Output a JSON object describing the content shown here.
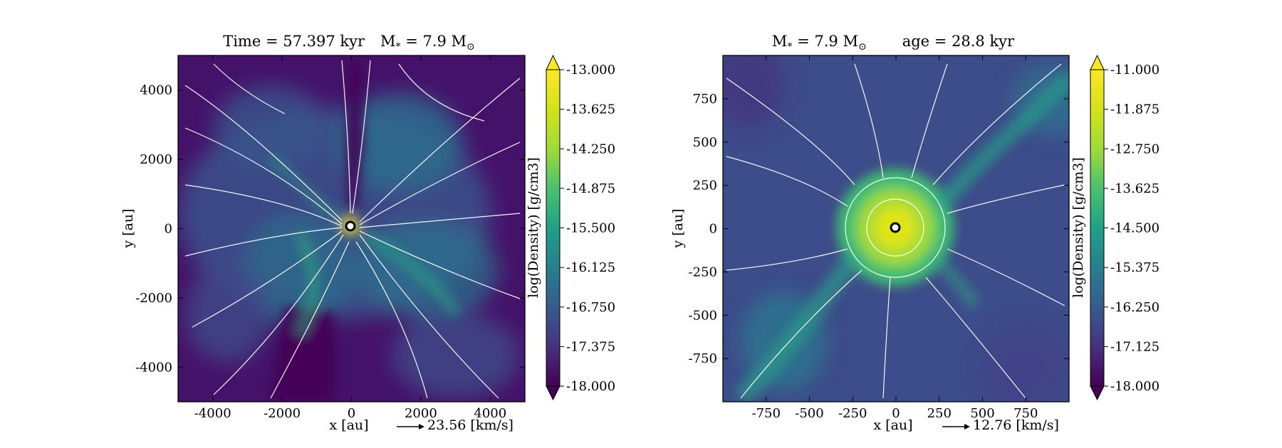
{
  "chart_data": [
    {
      "type": "heatmap",
      "title": "Time = 57.397 kyr    M$_*$ = 7.9 M$_\\odot$",
      "title_parts": {
        "time": "Time = 57.397 kyr",
        "mass_lhs": "M",
        "mass_sub": "*",
        "mass_mid": " = 7.9 M",
        "mass_unit_sub": "⊙"
      },
      "xlabel": "x [au]",
      "ylabel": "y [au]",
      "xlim": [
        -5000,
        5000
      ],
      "ylim": [
        -5000,
        5000
      ],
      "xticks": [
        -4000,
        -2000,
        0,
        2000,
        4000
      ],
      "xtick_labels": [
        "-4000",
        "-2000",
        "0",
        "2000",
        "4000"
      ],
      "yticks": [
        -4000,
        -2000,
        0,
        2000,
        4000
      ],
      "ytick_labels": [
        "-4000",
        "-2000",
        "0",
        "2000",
        "4000"
      ],
      "velocity_key": "23.56 [km/s]",
      "colorbar": {
        "label": "log(Density) [g/cm3]",
        "range": [
          -18.0,
          -13.0
        ],
        "ticks": [
          -13.0,
          -13.625,
          -14.25,
          -14.875,
          -15.5,
          -16.125,
          -16.75,
          -17.375,
          -18.0
        ],
        "tick_labels": [
          "-13.000",
          "-13.625",
          "-14.250",
          "-14.875",
          "-15.500",
          "-16.125",
          "-16.750",
          "-17.375",
          "-18.000"
        ],
        "colormap": "viridis",
        "extend": "both"
      },
      "star_position": [
        0,
        0
      ],
      "grid": false
    },
    {
      "type": "heatmap",
      "title_parts": {
        "mass_lhs": "M",
        "mass_sub": "*",
        "mass_mid": " = 7.9 M",
        "mass_unit_sub": "⊙",
        "age": "age = 28.8 kyr"
      },
      "xlabel": "x [au]",
      "ylabel": "y [au]",
      "xlim": [
        -1000,
        1000
      ],
      "ylim": [
        -1000,
        1000
      ],
      "xticks": [
        -750,
        -500,
        -250,
        0,
        250,
        500,
        750
      ],
      "xtick_labels": [
        "-750",
        "-500",
        "-250",
        "0",
        "250",
        "500",
        "750"
      ],
      "yticks": [
        -750,
        -500,
        -250,
        0,
        250,
        500,
        750
      ],
      "ytick_labels": [
        "-750",
        "-500",
        "-250",
        "0",
        "250",
        "500",
        "750"
      ],
      "velocity_key": "12.76 [km/s]",
      "colorbar": {
        "label": "log(Density) [g/cm3]",
        "range": [
          -18.0,
          -11.0
        ],
        "ticks": [
          -11.0,
          -11.875,
          -12.75,
          -13.625,
          -14.5,
          -15.375,
          -16.25,
          -17.125,
          -18.0
        ],
        "tick_labels": [
          "-11.000",
          "-11.875",
          "-12.750",
          "-13.625",
          "-14.500",
          "-15.375",
          "-16.250",
          "-17.125",
          "-18.000"
        ],
        "colormap": "viridis",
        "extend": "both"
      },
      "star_position": [
        0,
        0
      ],
      "grid": false
    }
  ],
  "colors": {
    "viridis_dark": "#440154",
    "viridis_mid": "#21918c",
    "viridis_bright": "#fde725",
    "streamline": "#ffffff",
    "star_ring": "#000000"
  }
}
